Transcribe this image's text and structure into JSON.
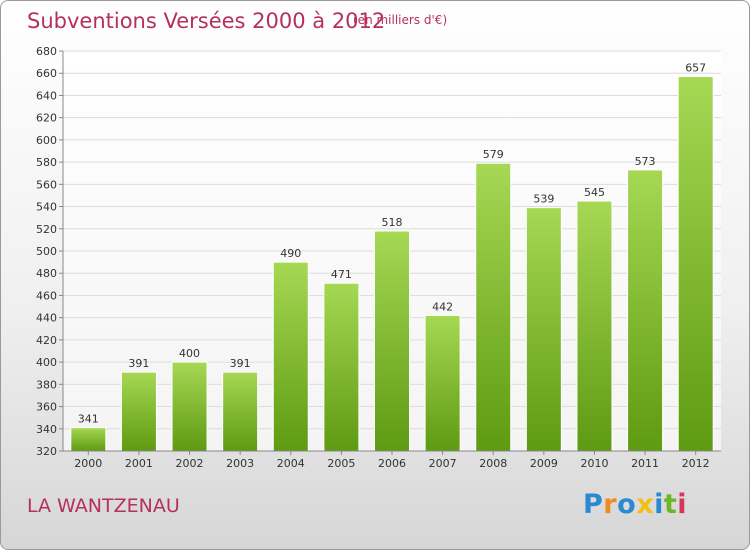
{
  "title": "Subventions Versées 2000 à 2012",
  "subtitle": "(en milliers d'€)",
  "commune": "LA WANTZENAU",
  "logo": {
    "letters": [
      "P",
      "r",
      "o",
      "x",
      "i",
      "t",
      "i"
    ],
    "colors": [
      "#2a8ad1",
      "#f08a1c",
      "#2a8ad1",
      "#f2c012",
      "#2a8ad1",
      "#6ab82a",
      "#d9345a"
    ]
  },
  "colors": {
    "bar_light": "#a6d854",
    "bar_dark": "#5e9a12",
    "text_accent": "#b5315a"
  },
  "chart_data": {
    "type": "bar",
    "title": "Subventions Versées 2000 à 2012",
    "xlabel": "",
    "ylabel": "",
    "categories": [
      "2000",
      "2001",
      "2002",
      "2003",
      "2004",
      "2005",
      "2006",
      "2007",
      "2008",
      "2009",
      "2010",
      "2011",
      "2012"
    ],
    "values": [
      341,
      391,
      400,
      391,
      490,
      471,
      518,
      442,
      579,
      539,
      545,
      573,
      657
    ],
    "ylim": [
      320,
      680
    ],
    "yticks": [
      320,
      340,
      360,
      380,
      400,
      420,
      440,
      460,
      480,
      500,
      520,
      540,
      560,
      580,
      600,
      620,
      640,
      660,
      680
    ],
    "grid": true,
    "legend": "none"
  }
}
